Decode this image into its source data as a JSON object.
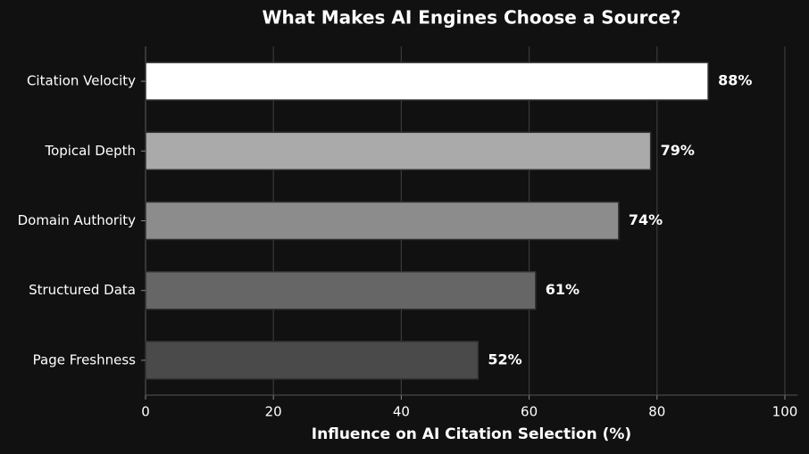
{
  "chart_data": {
    "type": "bar",
    "orientation": "horizontal",
    "title": "What Makes AI Engines Choose a Source?",
    "xlabel": "Influence on AI Citation Selection (%)",
    "categories": [
      "Citation Velocity",
      "Topical Depth",
      "Domain Authority",
      "Structured Data",
      "Page Freshness"
    ],
    "values": [
      88,
      79,
      74,
      61,
      52
    ],
    "value_labels": [
      "88%",
      "79%",
      "74%",
      "61%",
      "52%"
    ],
    "colors": [
      "#ffffff",
      "#aaaaaa",
      "#8c8c8c",
      "#666666",
      "#4a4a4a"
    ],
    "xlim": [
      0,
      102
    ],
    "xticks": [
      0,
      20,
      40,
      60,
      80,
      100
    ],
    "grid": true
  }
}
